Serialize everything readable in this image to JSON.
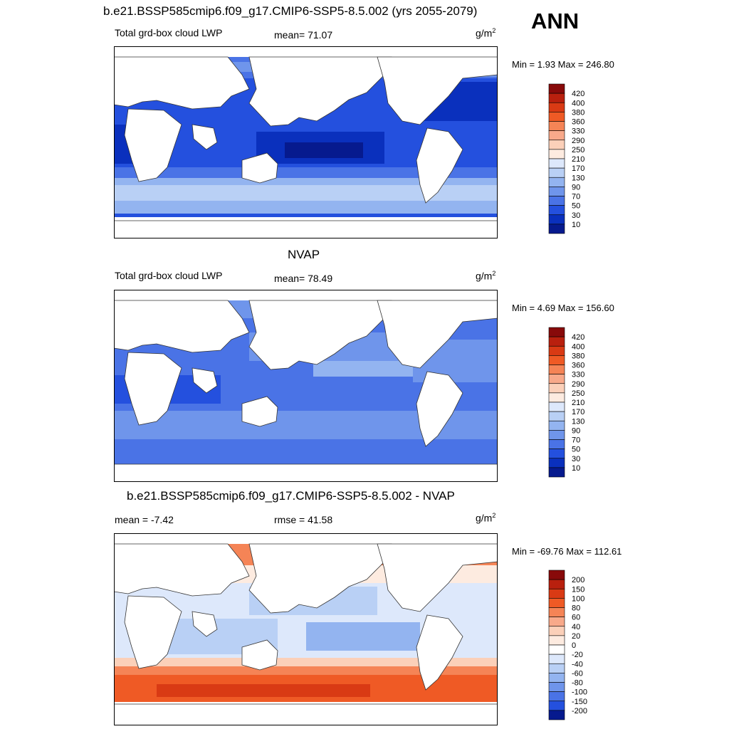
{
  "season": "ANN",
  "panels": [
    {
      "title": "b.e21.BSSP585cmip6.f09_g17.CMIP6-SSP5-8.5.002 (yrs 2055-2079)",
      "left_label": "Total grd-box cloud LWP",
      "stat_label": "mean=  71.07",
      "units": "g/m",
      "units_exp": "2",
      "minmax": "Min =   1.93 Max = 246.80",
      "levels": [
        "420",
        "400",
        "380",
        "360",
        "330",
        "290",
        "250",
        "210",
        "170",
        "130",
        "90",
        "70",
        "50",
        "30",
        "10"
      ]
    },
    {
      "title": "NVAP",
      "left_label": "Total grd-box cloud LWP",
      "stat_label": "mean=  78.49",
      "units": "g/m",
      "units_exp": "2",
      "minmax": "Min =   4.69 Max = 156.60",
      "levels": [
        "420",
        "400",
        "380",
        "360",
        "330",
        "290",
        "250",
        "210",
        "170",
        "130",
        "90",
        "70",
        "50",
        "30",
        "10"
      ]
    },
    {
      "title": "b.e21.BSSP585cmip6.f09_g17.CMIP6-SSP5-8.5.002 - NVAP",
      "left_label": "mean =  -7.42",
      "stat_label": "rmse =  41.58",
      "units": "g/m",
      "units_exp": "2",
      "minmax": "Min = -69.76 Max = 112.61",
      "levels": [
        "200",
        "150",
        "100",
        "80",
        "60",
        "40",
        "20",
        "0",
        "-20",
        "-40",
        "-60",
        "-80",
        "-100",
        "-150",
        "-200"
      ]
    }
  ],
  "colors": {
    "abs_colorbar": [
      "#880a0a",
      "#b9200e",
      "#d93a14",
      "#ef5a25",
      "#f58456",
      "#f8a98a",
      "#fbd0b9",
      "#fdebe0",
      "#dde8fb",
      "#b9d0f5",
      "#93b4f0",
      "#6f95eb",
      "#4a73e6",
      "#2450de",
      "#0a30bd",
      "#061a8e"
    ],
    "diff_colorbar": [
      "#880a0a",
      "#b9200e",
      "#d93a14",
      "#ef5a25",
      "#f58456",
      "#f8a98a",
      "#fbd0b9",
      "#fdebe0",
      "#ffffff",
      "#dde8fb",
      "#b9d0f5",
      "#93b4f0",
      "#6f95eb",
      "#4a73e6",
      "#2450de",
      "#061a8e"
    ]
  }
}
